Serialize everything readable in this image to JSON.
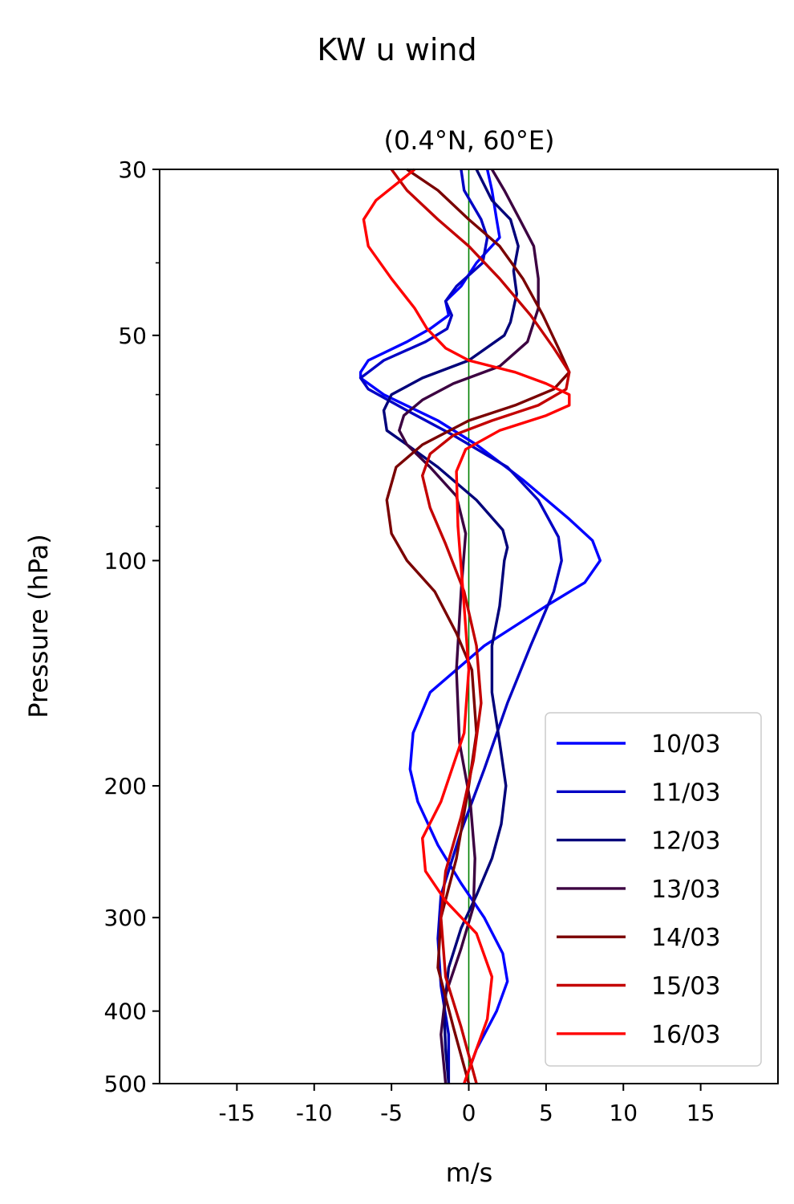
{
  "figure": {
    "suptitle": "KW u wind",
    "title": "(0.4°N, 60°E)"
  },
  "chart_data": {
    "type": "line",
    "orientation": "vertical-profile",
    "xlabel": "m/s",
    "ylabel": "Pressure (hPa)",
    "xlim": [
      -20,
      20
    ],
    "ylim": [
      500,
      30
    ],
    "yscale": "log",
    "xticks": [
      -15,
      -10,
      -5,
      0,
      5,
      10,
      15
    ],
    "xtick_labels": [
      "-15",
      "-10",
      "-5",
      "0",
      "5",
      "10",
      "15"
    ],
    "yticks": [
      30,
      50,
      100,
      200,
      300,
      400,
      500
    ],
    "ytick_labels": [
      "30",
      "50",
      "100",
      "200",
      "300",
      "400",
      "500"
    ],
    "y_minor_ticks": [
      40,
      60,
      70,
      80,
      90
    ],
    "grid": false,
    "legend_position": "lower-right",
    "reference_line": {
      "x": 0,
      "color": "#008000"
    },
    "series": [
      {
        "name": "10/03",
        "color": "#0000ff",
        "points": [
          [
            1.2,
            30
          ],
          [
            1.5,
            32
          ],
          [
            1.8,
            35
          ],
          [
            2.0,
            37
          ],
          [
            0.5,
            40
          ],
          [
            -0.5,
            43
          ],
          [
            -1.5,
            45
          ],
          [
            -1.3,
            47
          ],
          [
            -2.5,
            49
          ],
          [
            -4,
            51
          ],
          [
            -6.5,
            54
          ],
          [
            -7,
            56
          ],
          [
            -7,
            57
          ],
          [
            -5.5,
            60
          ],
          [
            -2,
            65
          ],
          [
            0.5,
            70
          ],
          [
            3.5,
            78
          ],
          [
            6.5,
            88
          ],
          [
            8,
            94
          ],
          [
            8.5,
            100
          ],
          [
            7.5,
            107
          ],
          [
            5,
            115
          ],
          [
            1,
            130
          ],
          [
            -2.5,
            150
          ],
          [
            -3.6,
            170
          ],
          [
            -3.8,
            190
          ],
          [
            -3.3,
            210
          ],
          [
            -2,
            240
          ],
          [
            -0.5,
            270
          ],
          [
            1,
            300
          ],
          [
            2.2,
            335
          ],
          [
            2.5,
            365
          ],
          [
            1.8,
            400
          ],
          [
            0.5,
            450
          ],
          [
            -0.3,
            500
          ]
        ]
      },
      {
        "name": "11/03",
        "color": "#0000c4",
        "points": [
          [
            -0.5,
            30
          ],
          [
            -0.3,
            32
          ],
          [
            0.8,
            35
          ],
          [
            1.2,
            37
          ],
          [
            0.9,
            40
          ],
          [
            -0.8,
            43
          ],
          [
            -1.5,
            45
          ],
          [
            -1.1,
            47
          ],
          [
            -1.4,
            49
          ],
          [
            -2.8,
            51
          ],
          [
            -5.5,
            54
          ],
          [
            -6.5,
            56
          ],
          [
            -7,
            57
          ],
          [
            -6.5,
            59
          ],
          [
            -4,
            63
          ],
          [
            -1,
            68
          ],
          [
            2.5,
            75
          ],
          [
            4.5,
            83
          ],
          [
            5.8,
            93
          ],
          [
            6,
            100
          ],
          [
            5.5,
            110
          ],
          [
            4,
            130
          ],
          [
            2.5,
            155
          ],
          [
            1,
            190
          ],
          [
            -0.5,
            230
          ],
          [
            -1.8,
            280
          ],
          [
            -2,
            320
          ],
          [
            -1.8,
            370
          ],
          [
            -1.3,
            430
          ],
          [
            -1.3,
            500
          ]
        ]
      },
      {
        "name": "12/03",
        "color": "#00007a",
        "points": [
          [
            0.5,
            30
          ],
          [
            1.5,
            33
          ],
          [
            2.7,
            35
          ],
          [
            3.2,
            38
          ],
          [
            2.9,
            41
          ],
          [
            3.1,
            44
          ],
          [
            2.7,
            48
          ],
          [
            2.3,
            50
          ],
          [
            0,
            54
          ],
          [
            -3,
            57
          ],
          [
            -5,
            60
          ],
          [
            -5.5,
            63
          ],
          [
            -5.3,
            67
          ],
          [
            -4,
            70
          ],
          [
            -2,
            75
          ],
          [
            0.5,
            83
          ],
          [
            2.2,
            91
          ],
          [
            2.5,
            96
          ],
          [
            2.3,
            100
          ],
          [
            2,
            115
          ],
          [
            1.5,
            130
          ],
          [
            1.5,
            150
          ],
          [
            2,
            175
          ],
          [
            2.4,
            200
          ],
          [
            2.1,
            225
          ],
          [
            1.5,
            250
          ],
          [
            0.5,
            280
          ],
          [
            -0.5,
            310
          ],
          [
            -1.3,
            350
          ],
          [
            -1.6,
            400
          ],
          [
            -1.5,
            450
          ],
          [
            -1.3,
            500
          ]
        ]
      },
      {
        "name": "13/03",
        "color": "#3c0041",
        "points": [
          [
            1.5,
            30
          ],
          [
            2.3,
            32
          ],
          [
            3.3,
            35
          ],
          [
            4.2,
            38
          ],
          [
            4.5,
            42
          ],
          [
            4.5,
            46
          ],
          [
            3.8,
            51
          ],
          [
            2,
            55
          ],
          [
            -1,
            58
          ],
          [
            -3,
            61
          ],
          [
            -4.2,
            64
          ],
          [
            -4.5,
            67
          ],
          [
            -4,
            70
          ],
          [
            -2.5,
            75
          ],
          [
            -0.8,
            82
          ],
          [
            -0.2,
            92
          ],
          [
            -0.5,
            110
          ],
          [
            -0.8,
            140
          ],
          [
            -0.6,
            175
          ],
          [
            0.1,
            210
          ],
          [
            0.4,
            250
          ],
          [
            0.3,
            290
          ],
          [
            -0.5,
            330
          ],
          [
            -1.5,
            380
          ],
          [
            -1.8,
            430
          ],
          [
            -1.5,
            500
          ]
        ]
      },
      {
        "name": "14/03",
        "color": "#7a0000",
        "points": [
          [
            -4,
            30
          ],
          [
            -2,
            32
          ],
          [
            0,
            35
          ],
          [
            2,
            38
          ],
          [
            3.5,
            42
          ],
          [
            4.8,
            47
          ],
          [
            5.8,
            52
          ],
          [
            6.5,
            56
          ],
          [
            5.5,
            59
          ],
          [
            3,
            62
          ],
          [
            0,
            65
          ],
          [
            -3,
            70
          ],
          [
            -4.7,
            75
          ],
          [
            -5.3,
            83
          ],
          [
            -5,
            92
          ],
          [
            -4,
            100
          ],
          [
            -2.2,
            110
          ],
          [
            -0.8,
            125
          ],
          [
            0.2,
            140
          ],
          [
            0.5,
            170
          ],
          [
            0,
            200
          ],
          [
            -0.8,
            250
          ],
          [
            -1.8,
            300
          ],
          [
            -2,
            350
          ],
          [
            -1,
            420
          ],
          [
            0,
            500
          ]
        ]
      },
      {
        "name": "15/03",
        "color": "#c40000",
        "points": [
          [
            -5,
            30
          ],
          [
            -4,
            32
          ],
          [
            -2,
            35
          ],
          [
            0,
            38
          ],
          [
            2,
            42
          ],
          [
            4,
            47
          ],
          [
            5.5,
            52
          ],
          [
            6.5,
            56
          ],
          [
            6.3,
            59
          ],
          [
            4.5,
            62
          ],
          [
            1.5,
            65
          ],
          [
            -1,
            68
          ],
          [
            -2.5,
            72
          ],
          [
            -3,
            77
          ],
          [
            -2.5,
            85
          ],
          [
            -1.5,
            95
          ],
          [
            -0.3,
            110
          ],
          [
            0.5,
            130
          ],
          [
            0.8,
            155
          ],
          [
            0.3,
            185
          ],
          [
            -0.5,
            220
          ],
          [
            -1.5,
            260
          ],
          [
            -1.8,
            300
          ],
          [
            -1.5,
            360
          ],
          [
            -0.5,
            420
          ],
          [
            0.5,
            500
          ]
        ]
      },
      {
        "name": "16/03",
        "color": "#ff0000",
        "points": [
          [
            -3.5,
            30
          ],
          [
            -6,
            33
          ],
          [
            -6.8,
            35
          ],
          [
            -6.5,
            38
          ],
          [
            -5,
            42
          ],
          [
            -3.5,
            46
          ],
          [
            -2.7,
            49
          ],
          [
            -1.5,
            52
          ],
          [
            0,
            54
          ],
          [
            3,
            56
          ],
          [
            5,
            58
          ],
          [
            6.5,
            60
          ],
          [
            6.5,
            62
          ],
          [
            5,
            64
          ],
          [
            2,
            67
          ],
          [
            -0.2,
            71
          ],
          [
            -0.8,
            76
          ],
          [
            -0.7,
            90
          ],
          [
            -0.3,
            115
          ],
          [
            0,
            140
          ],
          [
            -0.3,
            170
          ],
          [
            -1.8,
            210
          ],
          [
            -3,
            235
          ],
          [
            -2.8,
            260
          ],
          [
            -1.5,
            285
          ],
          [
            0.5,
            315
          ],
          [
            1.5,
            360
          ],
          [
            1.2,
            410
          ],
          [
            0,
            480
          ],
          [
            -0.3,
            500
          ]
        ]
      }
    ]
  }
}
